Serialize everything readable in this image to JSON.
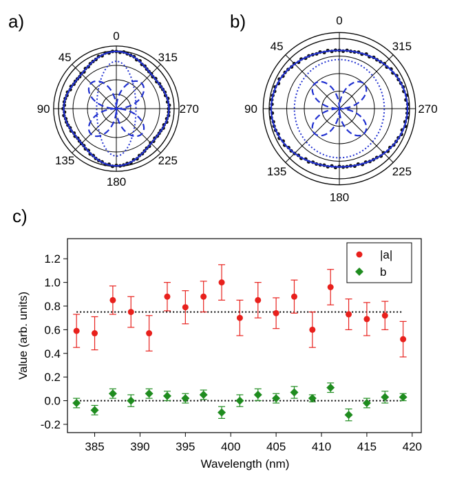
{
  "panels": {
    "a": "a)",
    "b": "b)",
    "c": "c)"
  },
  "chart_data": [
    {
      "type": "polar",
      "panel": "a)",
      "angle_tick_labels": [
        "0",
        "315",
        "270",
        "225",
        "180",
        "135",
        "90",
        "45"
      ],
      "angle_tick_values": [
        0,
        315,
        270,
        225,
        180,
        135,
        90,
        45
      ],
      "rings": 4,
      "r_max": 1.0,
      "curves": {
        "total": {
          "style": "solid",
          "color": "#1f2fd0",
          "A": 0.94,
          "B": 0.86,
          "amp4": 0.05
        },
        "dotted": {
          "style": "dotted",
          "color": "#1f2fd0",
          "A": 0.82,
          "B": 0.34
        },
        "dashed": {
          "style": "dashed",
          "color": "#1f2fd0",
          "amp": 0.62
        }
      }
    },
    {
      "type": "polar",
      "panel": "b)",
      "angle_tick_labels": [
        "0",
        "315",
        "270",
        "225",
        "180",
        "135",
        "90",
        "45"
      ],
      "angle_tick_values": [
        0,
        315,
        270,
        225,
        180,
        135,
        90,
        45
      ],
      "rings": 4,
      "r_max": 1.0,
      "curves": {
        "total": {
          "style": "solid",
          "color": "#1f2fd0",
          "A": 0.83,
          "B": 0.97,
          "amp4": 0.0
        },
        "dotted": {
          "style": "dotted",
          "color": "#1f2fd0",
          "A": 0.7,
          "B": 0.64
        },
        "dashed": {
          "style": "dashed",
          "color": "#1f2fd0",
          "amp": 0.5
        }
      }
    },
    {
      "type": "scatter",
      "panel": "c)",
      "xlabel": "Wavelength (nm)",
      "ylabel": "Value (arb. units)",
      "xlim": [
        382,
        421
      ],
      "ylim": [
        -0.27,
        1.37
      ],
      "xticks": [
        385,
        390,
        395,
        400,
        405,
        410,
        415,
        420
      ],
      "yticks": [
        -0.2,
        0.0,
        0.2,
        0.4,
        0.6,
        0.8,
        1.0,
        1.2
      ],
      "x": [
        383,
        385,
        387,
        389,
        391,
        393,
        395,
        397,
        399,
        401,
        403,
        405,
        407,
        409,
        411,
        413,
        415,
        417,
        419
      ],
      "series": [
        {
          "name": "|a|",
          "marker": "circle",
          "color": "#e8201c",
          "values": [
            0.59,
            0.57,
            0.85,
            0.75,
            0.57,
            0.88,
            0.79,
            0.88,
            1.0,
            0.7,
            0.85,
            0.74,
            0.88,
            0.6,
            0.96,
            0.73,
            0.69,
            0.72,
            0.52
          ],
          "errors": [
            0.14,
            0.14,
            0.12,
            0.13,
            0.15,
            0.12,
            0.14,
            0.13,
            0.15,
            0.15,
            0.15,
            0.13,
            0.14,
            0.15,
            0.15,
            0.13,
            0.14,
            0.12,
            0.15
          ],
          "reference_line": 0.75
        },
        {
          "name": "b",
          "marker": "diamond",
          "color": "#1f8c1f",
          "values": [
            -0.02,
            -0.08,
            0.06,
            0.0,
            0.06,
            0.04,
            0.02,
            0.05,
            -0.1,
            0.0,
            0.05,
            0.02,
            0.07,
            0.02,
            0.11,
            -0.12,
            -0.02,
            0.03,
            0.03
          ],
          "errors": [
            0.04,
            0.04,
            0.04,
            0.05,
            0.04,
            0.04,
            0.04,
            0.04,
            0.05,
            0.05,
            0.05,
            0.04,
            0.05,
            0.03,
            0.04,
            0.05,
            0.04,
            0.05,
            0.03
          ],
          "reference_line": 0.0
        }
      ],
      "legend_position": "top-right"
    }
  ]
}
